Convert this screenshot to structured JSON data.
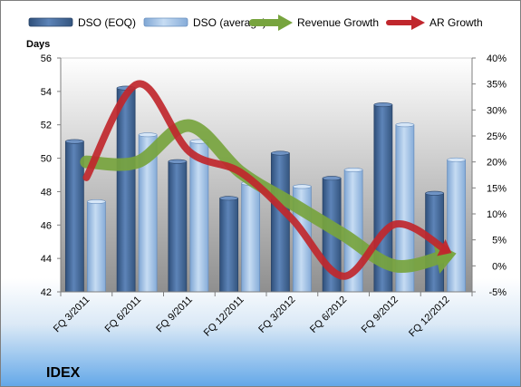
{
  "chart_data": {
    "type": "bar",
    "title": "",
    "company": "IDEX",
    "ylabel_left": "Days",
    "categories": [
      "FQ 3/2011",
      "FQ 6/2011",
      "FQ 9/2011",
      "FQ 12/2011",
      "FQ 3/2012",
      "FQ 6/2012",
      "FQ 9/2012",
      "FQ 12/2012"
    ],
    "ylim_left": [
      42,
      56
    ],
    "yticks_left": [
      "42",
      "44",
      "46",
      "48",
      "50",
      "52",
      "54",
      "56"
    ],
    "ylim_right": [
      -5,
      40
    ],
    "yticks_right": [
      "-5%",
      "0%",
      "5%",
      "10%",
      "15%",
      "20%",
      "25%",
      "30%",
      "35%",
      "40%"
    ],
    "grid": false,
    "legend_position": "top",
    "series": [
      {
        "name": "DSO (EOQ)",
        "type": "bar",
        "axis": "left",
        "color": "#4a6e9f",
        "values": [
          51.0,
          54.2,
          49.8,
          47.6,
          50.3,
          48.8,
          53.2,
          47.9
        ]
      },
      {
        "name": "DSO (average)",
        "type": "bar",
        "axis": "left",
        "color": "#a9c6e8",
        "values": [
          47.4,
          51.4,
          51.0,
          48.5,
          48.3,
          49.3,
          52.0,
          49.9
        ]
      },
      {
        "name": "Revenue Growth",
        "type": "line",
        "axis": "right",
        "color": "#77a43e",
        "values": [
          20,
          20,
          27,
          18,
          12,
          6,
          0,
          2
        ]
      },
      {
        "name": "AR Growth",
        "type": "line",
        "axis": "right",
        "color": "#c0272d",
        "values": [
          17,
          35,
          22,
          18,
          9,
          -2,
          8,
          3
        ]
      }
    ]
  }
}
